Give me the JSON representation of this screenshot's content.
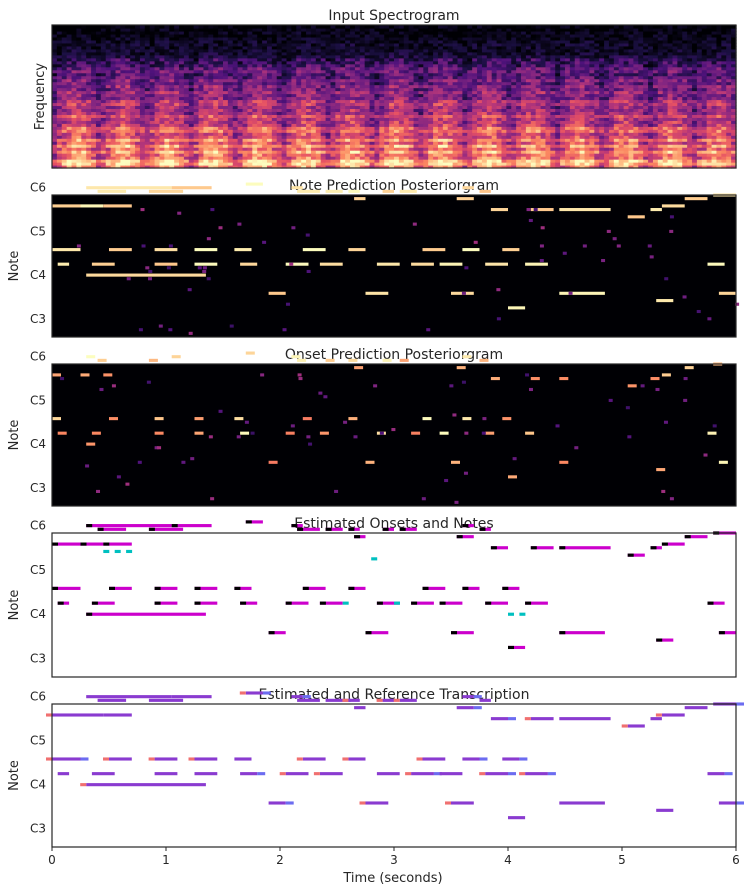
{
  "figure": {
    "xlabel": "Time (seconds)",
    "x_ticks": [
      "0",
      "1",
      "2",
      "3",
      "4",
      "5",
      "6"
    ]
  },
  "chart_data": [
    {
      "type": "heatmap",
      "title": "Input Spectrogram",
      "ylabel": "Frequency",
      "xlim": [
        0,
        6
      ],
      "colormap": "magma",
      "y_ticks": []
    },
    {
      "type": "heatmap",
      "title": "Note Prediction Posteriorgram",
      "ylabel": "Note",
      "xlim": [
        0,
        6
      ],
      "ylim": [
        -5,
        34
      ],
      "colormap": "magma",
      "y_ticks": [
        "C3",
        "C4",
        "C5",
        "C6"
      ],
      "y_tick_values": [
        0,
        12,
        24,
        36
      ],
      "notes": [
        {
          "p": 36,
          "t0": 0.3,
          "t1": 1.05
        },
        {
          "p": 36,
          "t0": 1.05,
          "t1": 1.4
        },
        {
          "p": 35,
          "t0": 0.4,
          "t1": 0.65
        },
        {
          "p": 35,
          "t0": 0.85,
          "t1": 1.15
        },
        {
          "p": 31,
          "t0": 0.0,
          "t1": 0.25
        },
        {
          "p": 31,
          "t0": 0.25,
          "t1": 0.45
        },
        {
          "p": 31,
          "t0": 0.45,
          "t1": 0.7
        },
        {
          "p": 19,
          "t0": 0.0,
          "t1": 0.25
        },
        {
          "p": 19,
          "t0": 0.5,
          "t1": 0.7
        },
        {
          "p": 19,
          "t0": 0.9,
          "t1": 1.1
        },
        {
          "p": 19,
          "t0": 1.25,
          "t1": 1.45
        },
        {
          "p": 19,
          "t0": 1.6,
          "t1": 1.75
        },
        {
          "p": 15,
          "t0": 0.05,
          "t1": 0.15
        },
        {
          "p": 15,
          "t0": 0.35,
          "t1": 0.55
        },
        {
          "p": 15,
          "t0": 0.9,
          "t1": 1.1
        },
        {
          "p": 15,
          "t0": 1.25,
          "t1": 1.45
        },
        {
          "p": 15,
          "t0": 1.65,
          "t1": 1.8
        },
        {
          "p": 12,
          "t0": 0.3,
          "t1": 1.35
        },
        {
          "p": 37,
          "t0": 1.7,
          "t1": 1.85
        },
        {
          "p": 36,
          "t0": 2.1,
          "t1": 2.2
        },
        {
          "p": 35,
          "t0": 2.15,
          "t1": 2.35
        },
        {
          "p": 35,
          "t0": 2.4,
          "t1": 2.55
        },
        {
          "p": 35,
          "t0": 2.6,
          "t1": 2.7
        },
        {
          "p": 33,
          "t0": 2.65,
          "t1": 2.75
        },
        {
          "p": 35,
          "t0": 2.9,
          "t1": 3.0
        },
        {
          "p": 35,
          "t0": 3.05,
          "t1": 3.2
        },
        {
          "p": 36,
          "t0": 3.6,
          "t1": 3.7
        },
        {
          "p": 35,
          "t0": 3.75,
          "t1": 3.85
        },
        {
          "p": 33,
          "t0": 3.55,
          "t1": 3.7
        },
        {
          "p": 30,
          "t0": 3.85,
          "t1": 4.0
        },
        {
          "p": 30,
          "t0": 4.2,
          "t1": 4.4
        },
        {
          "p": 30,
          "t0": 4.45,
          "t1": 4.9
        },
        {
          "p": 28,
          "t0": 5.05,
          "t1": 5.2
        },
        {
          "p": 30,
          "t0": 5.25,
          "t1": 5.35
        },
        {
          "p": 31,
          "t0": 5.35,
          "t1": 5.55
        },
        {
          "p": 33,
          "t0": 5.55,
          "t1": 5.75
        },
        {
          "p": 34,
          "t0": 5.8,
          "t1": 6.0
        },
        {
          "p": 15,
          "t0": 2.05,
          "t1": 2.25
        },
        {
          "p": 15,
          "t0": 2.35,
          "t1": 2.55
        },
        {
          "p": 15,
          "t0": 2.85,
          "t1": 3.05
        },
        {
          "p": 15,
          "t0": 3.15,
          "t1": 3.35
        },
        {
          "p": 15,
          "t0": 3.4,
          "t1": 3.6
        },
        {
          "p": 15,
          "t0": 3.8,
          "t1": 4.0
        },
        {
          "p": 15,
          "t0": 4.15,
          "t1": 4.35
        },
        {
          "p": 19,
          "t0": 2.2,
          "t1": 2.4
        },
        {
          "p": 19,
          "t0": 2.6,
          "t1": 2.75
        },
        {
          "p": 19,
          "t0": 3.25,
          "t1": 3.45
        },
        {
          "p": 19,
          "t0": 3.6,
          "t1": 3.75
        },
        {
          "p": 19,
          "t0": 3.95,
          "t1": 4.1
        },
        {
          "p": 7,
          "t0": 1.9,
          "t1": 2.05
        },
        {
          "p": 7,
          "t0": 2.75,
          "t1": 2.95
        },
        {
          "p": 7,
          "t0": 3.5,
          "t1": 3.7
        },
        {
          "p": 7,
          "t0": 4.45,
          "t1": 4.85
        },
        {
          "p": 7,
          "t0": 5.85,
          "t1": 6.0
        },
        {
          "p": 3,
          "t0": 4.0,
          "t1": 4.15
        },
        {
          "p": 5,
          "t0": 5.3,
          "t1": 5.45
        },
        {
          "p": 15,
          "t0": 5.75,
          "t1": 5.9
        }
      ]
    },
    {
      "type": "heatmap",
      "title": "Onset Prediction Posteriorgram",
      "ylabel": "Note",
      "xlim": [
        0,
        6
      ],
      "ylim": [
        -5,
        34
      ],
      "colormap": "magma",
      "y_ticks": [
        "C3",
        "C4",
        "C5",
        "C6"
      ],
      "y_tick_values": [
        0,
        12,
        24,
        36
      ]
    },
    {
      "type": "scatter",
      "title": "Estimated Onsets and Notes",
      "ylabel": "Note",
      "xlim": [
        0,
        6
      ],
      "ylim": [
        -5,
        34
      ],
      "y_ticks": [
        "C3",
        "C4",
        "C5",
        "C6"
      ],
      "y_tick_values": [
        0,
        12,
        24,
        36
      ],
      "colors": {
        "onset": "#000000",
        "note": "#cc00cc",
        "extra": "#00c0c0"
      }
    },
    {
      "type": "scatter",
      "title": "Estimated and Reference Transcription",
      "ylabel": "Note",
      "xlabel": "Time (seconds)",
      "xlim": [
        0,
        6
      ],
      "ylim": [
        -5,
        34
      ],
      "y_ticks": [
        "C3",
        "C4",
        "C5",
        "C6"
      ],
      "y_tick_values": [
        0,
        12,
        24,
        36
      ],
      "colors": {
        "estimated": "#6c6cf0",
        "reference": "#f07070",
        "overlap": "#8a3bd0"
      }
    }
  ]
}
